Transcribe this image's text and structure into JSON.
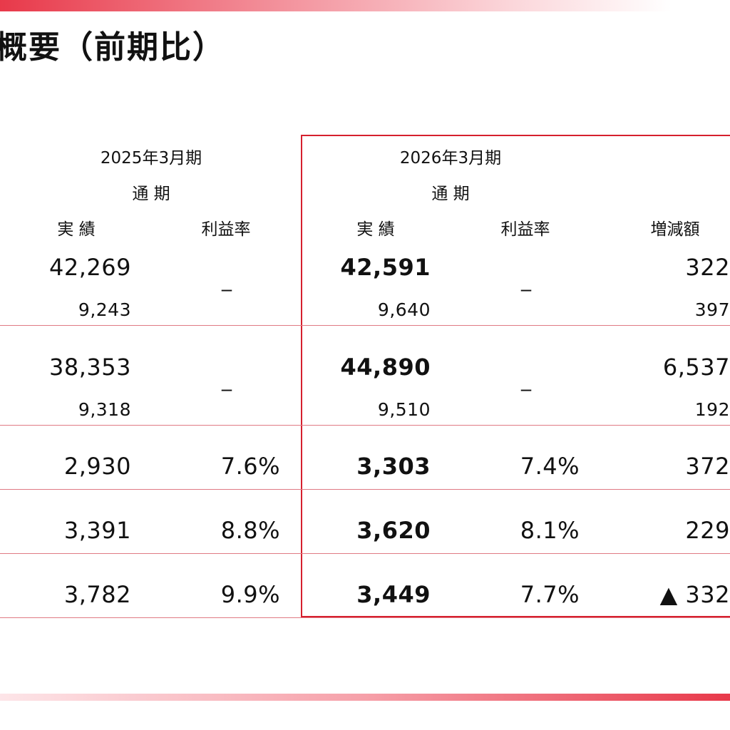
{
  "title": "概要（前期比）",
  "header": {
    "prev_period": "2025年3月期",
    "curr_period": "2026年3月期",
    "prev_full_year": "通 期",
    "curr_full_year": "通 期",
    "col_actual_prev": "実 績",
    "col_margin_prev": "利益率",
    "col_actual_curr": "実 績",
    "col_margin_curr": "利益率",
    "col_change": "増減額"
  },
  "rows": [
    {
      "prev_actual": "42,269",
      "prev_sub": "9,243",
      "prev_margin": "_",
      "curr_actual": "42,591",
      "curr_sub": "9,640",
      "curr_margin": "_",
      "change": "322",
      "change_sub": "397"
    },
    {
      "prev_actual": "38,353",
      "prev_sub": "9,318",
      "prev_margin": "_",
      "curr_actual": "44,890",
      "curr_sub": "9,510",
      "curr_margin": "_",
      "change": "6,537",
      "change_sub": "192"
    },
    {
      "prev_actual": "2,930",
      "prev_margin": "7.6%",
      "curr_actual": "3,303",
      "curr_margin": "7.4%",
      "change": "372"
    },
    {
      "prev_actual": "3,391",
      "prev_margin": "8.8%",
      "curr_actual": "3,620",
      "curr_margin": "8.1%",
      "change": "229"
    },
    {
      "prev_actual": "3,782",
      "prev_margin": "9.9%",
      "curr_actual": "3,449",
      "curr_margin": "7.7%",
      "change": "▲ 332"
    }
  ],
  "colors": {
    "accent": "#d6202e",
    "rule": "#e07a84"
  }
}
